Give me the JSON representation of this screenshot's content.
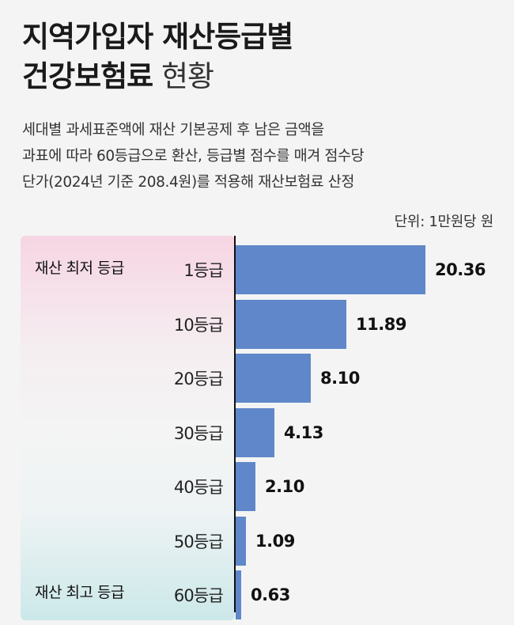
{
  "header": {
    "title_line1": "지역가입자 재산등급별",
    "title_line2_bold": "건강보험료",
    "title_line2_light": " 현황",
    "subtitle_lines": [
      "세대별 과세표준액에 재산 기본공제 후 남은 금액을",
      "과표에 따라 60등급으로 환산, 등급별 점수를 매겨 점수당",
      "단가(2024년 기준 208.4원)를 적용해 재산보험료 산정"
    ],
    "unit": "단위: 1만원당 원"
  },
  "annotations": {
    "lowest": "재산 최저 등급",
    "highest": "재산 최고 등급"
  },
  "chart_data": {
    "type": "bar",
    "orientation": "horizontal",
    "categories": [
      "1등급",
      "10등급",
      "20등급",
      "30등급",
      "40등급",
      "50등급",
      "60등급"
    ],
    "values": [
      20.36,
      11.89,
      8.1,
      4.13,
      2.1,
      1.09,
      0.63
    ],
    "value_labels": [
      "20.36",
      "11.89",
      "8.10",
      "4.13",
      "2.10",
      "1.09",
      "0.63"
    ],
    "xlim": [
      0,
      20.36
    ],
    "colors": {
      "bar": "#5f87c9"
    }
  }
}
